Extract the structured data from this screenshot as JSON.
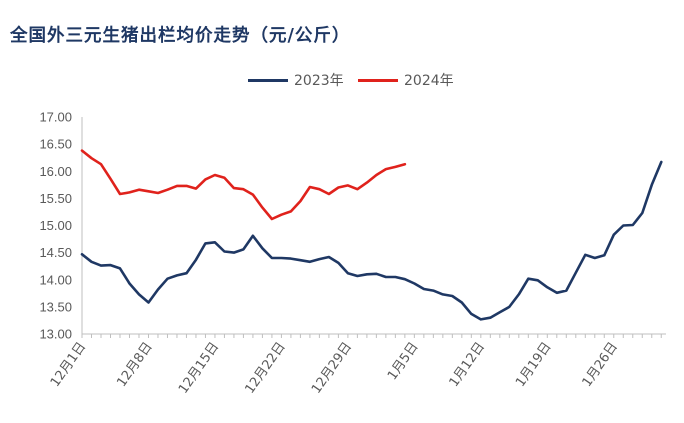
{
  "chart_data": {
    "type": "line",
    "title": "全国外三元生猪出栏均价走势（元/公斤）",
    "ylim": [
      13.0,
      17.0
    ],
    "y_ticks": [
      "13.00",
      "13.50",
      "14.00",
      "14.50",
      "15.00",
      "15.50",
      "16.00",
      "16.50",
      "17.00"
    ],
    "x_ticks": [
      "12月1日",
      "12月8日",
      "12月15日",
      "12月22日",
      "12月29日",
      "1月5日",
      "1月12日",
      "1月19日",
      "1月26日"
    ],
    "x_range_days": [
      0,
      59
    ],
    "grid": false,
    "legend_position": "top-center",
    "series": [
      {
        "name": "2023年",
        "color": "#1f3864",
        "points": [
          [
            0,
            14.47
          ],
          [
            1,
            14.33
          ],
          [
            2,
            14.26
          ],
          [
            3,
            14.27
          ],
          [
            4,
            14.21
          ],
          [
            5,
            13.93
          ],
          [
            6,
            13.73
          ],
          [
            7,
            13.58
          ],
          [
            8,
            13.82
          ],
          [
            9,
            14.02
          ],
          [
            10,
            14.08
          ],
          [
            11,
            14.12
          ],
          [
            12,
            14.37
          ],
          [
            13,
            14.67
          ],
          [
            14,
            14.69
          ],
          [
            15,
            14.52
          ],
          [
            16,
            14.5
          ],
          [
            17,
            14.56
          ],
          [
            18,
            14.81
          ],
          [
            19,
            14.58
          ],
          [
            20,
            14.4
          ],
          [
            21,
            14.4
          ],
          [
            22,
            14.39
          ],
          [
            23,
            14.36
          ],
          [
            24,
            14.33
          ],
          [
            25,
            14.38
          ],
          [
            26,
            14.42
          ],
          [
            27,
            14.31
          ],
          [
            28,
            14.12
          ],
          [
            29,
            14.07
          ],
          [
            30,
            14.1
          ],
          [
            31,
            14.11
          ],
          [
            32,
            14.05
          ],
          [
            33,
            14.05
          ],
          [
            34,
            14.01
          ],
          [
            35,
            13.93
          ],
          [
            36,
            13.83
          ],
          [
            37,
            13.8
          ],
          [
            38,
            13.73
          ],
          [
            39,
            13.7
          ],
          [
            40,
            13.58
          ],
          [
            41,
            13.37
          ],
          [
            42,
            13.27
          ],
          [
            43,
            13.3
          ],
          [
            44,
            13.4
          ],
          [
            45,
            13.5
          ],
          [
            46,
            13.73
          ],
          [
            47,
            14.02
          ],
          [
            48,
            13.99
          ],
          [
            49,
            13.86
          ],
          [
            50,
            13.76
          ],
          [
            51,
            13.8
          ],
          [
            52,
            14.13
          ],
          [
            53,
            14.46
          ],
          [
            54,
            14.4
          ],
          [
            55,
            14.45
          ],
          [
            56,
            14.83
          ],
          [
            57,
            15.0
          ],
          [
            58,
            15.01
          ],
          [
            59,
            15.23
          ],
          [
            60,
            15.75
          ],
          [
            61,
            16.17
          ]
        ]
      },
      {
        "name": "2024年",
        "color": "#e0221c",
        "points": [
          [
            0,
            16.38
          ],
          [
            1,
            16.24
          ],
          [
            2,
            16.13
          ],
          [
            3,
            15.86
          ],
          [
            4,
            15.58
          ],
          [
            5,
            15.61
          ],
          [
            6,
            15.66
          ],
          [
            7,
            15.63
          ],
          [
            8,
            15.6
          ],
          [
            9,
            15.66
          ],
          [
            10,
            15.73
          ],
          [
            11,
            15.73
          ],
          [
            12,
            15.68
          ],
          [
            13,
            15.85
          ],
          [
            14,
            15.93
          ],
          [
            15,
            15.88
          ],
          [
            16,
            15.69
          ],
          [
            17,
            15.67
          ],
          [
            18,
            15.57
          ],
          [
            19,
            15.33
          ],
          [
            20,
            15.12
          ],
          [
            21,
            15.2
          ],
          [
            22,
            15.26
          ],
          [
            23,
            15.45
          ],
          [
            24,
            15.71
          ],
          [
            25,
            15.67
          ],
          [
            26,
            15.58
          ],
          [
            27,
            15.7
          ],
          [
            28,
            15.74
          ],
          [
            29,
            15.67
          ],
          [
            30,
            15.79
          ],
          [
            31,
            15.93
          ],
          [
            32,
            16.04
          ],
          [
            33,
            16.08
          ],
          [
            34,
            16.13
          ]
        ]
      }
    ]
  }
}
